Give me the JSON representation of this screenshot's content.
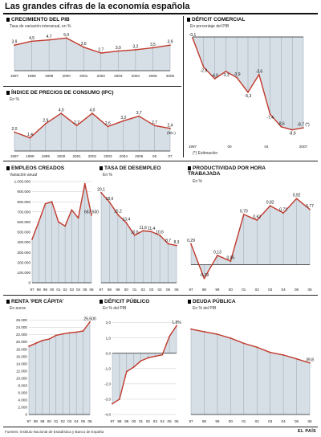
{
  "title": "Las grandes cifras de la economía española",
  "footer": {
    "sources": "Fuentes: Instituto Nacional de Estadística y Banco de España",
    "newspaper": "EL PAÍS"
  },
  "colors": {
    "line": "#c0392b",
    "fill": "#d6dee6",
    "grid": "#b5bec7"
  },
  "chart_data": [
    {
      "id": "pib",
      "type": "area",
      "title": "CRECIMIENTO DEL PIB",
      "subtitle": "Tasa de variación interanual, en %",
      "x": [
        "1997",
        "1998",
        "1999",
        "2000",
        "2001",
        "2002",
        "2003",
        "2004",
        "2005",
        "2006"
      ],
      "x_labels": [
        "1997",
        "1998",
        "1999",
        "2000",
        "2001",
        "2002",
        "2003",
        "2004",
        "2005",
        "2006"
      ],
      "values": [
        3.9,
        4.5,
        4.7,
        5.0,
        3.6,
        2.7,
        3.0,
        3.2,
        3.5,
        3.9
      ],
      "labels": [
        "3,9",
        "4,5",
        "4,7",
        "5,0",
        "3,6",
        "2,7",
        "3,0",
        "3,2",
        "3,5",
        "3,9"
      ],
      "ylim": [
        0,
        5.4
      ]
    },
    {
      "id": "ipc",
      "type": "area",
      "title": "ÍNDICE DE PRECIOS DE CONSUMO (IPC)",
      "subtitle": "En %",
      "x": [
        "1997",
        "1998",
        "1999",
        "2000",
        "2001",
        "2002",
        "2003",
        "2004",
        "2005",
        "2006",
        "Feb 2007"
      ],
      "x_labels": [
        "1997",
        "1998",
        "1999",
        "2000",
        "2001",
        "2002",
        "2003",
        "2004",
        "2005",
        "06",
        "07"
      ],
      "values": [
        2.0,
        1.4,
        2.9,
        4.0,
        2.7,
        4.0,
        2.6,
        3.2,
        3.7,
        2.7,
        2.4
      ],
      "labels": [
        "2,0",
        "1,4",
        "2,9",
        "4,0",
        "2,7",
        "4,0",
        "2,6",
        "3,2",
        "3,7",
        "2,7",
        "2,4"
      ],
      "end_note": "(feb.)",
      "ylim": [
        0,
        4.6
      ]
    },
    {
      "id": "deficit_comercial",
      "type": "area",
      "title": "DÉFICIT COMERCIAL",
      "subtitle": "En porcentaje del PIB",
      "x": [
        "1997",
        "1998",
        "1999",
        "2000",
        "2001",
        "2002",
        "2003",
        "2004",
        "2005",
        "2006",
        "2007"
      ],
      "x_labels": [
        "1997",
        "00",
        "04",
        "2007"
      ],
      "values": [
        -0.1,
        -2.9,
        -4.0,
        -3.3,
        -3.9,
        -5.3,
        -3.6,
        -7.4,
        -8.6,
        -8.9,
        -8.7
      ],
      "labels": [
        "-0,1",
        "-2,9",
        "-4,0",
        "-3,3",
        "-3,9",
        "-5,3",
        "-3,6",
        "-7,4",
        "-8,6",
        "-8,9",
        "-8,7 (*)"
      ],
      "ylim": [
        -10,
        0
      ],
      "note": "(*) Estimación"
    },
    {
      "id": "empleos",
      "type": "area",
      "title": "EMPLEOS CREADOS",
      "subtitle": "Variación anual",
      "x": [
        "1997",
        "1998",
        "1999",
        "2000",
        "2001",
        "2002",
        "2003",
        "2004",
        "2005",
        "2006"
      ],
      "x_labels": [
        "97",
        "98",
        "99",
        "00",
        "01",
        "02",
        "03",
        "04",
        "05",
        "06"
      ],
      "values": [
        430000,
        600000,
        780000,
        800000,
        600000,
        560000,
        720000,
        640000,
        980000,
        667500
      ],
      "labels": [
        "",
        "",
        "",
        "",
        "",
        "",
        "",
        "",
        "",
        "667.500"
      ],
      "yticks": [
        "1.000.000",
        "900.000",
        "800.000",
        "700.000",
        "600.000",
        "500.000",
        "400.000",
        "300.000",
        "200.000",
        "100.000",
        "0"
      ],
      "ylim": [
        0,
        1000000
      ]
    },
    {
      "id": "paro",
      "type": "area",
      "title": "TASA DE DESEMPLEO",
      "subtitle": "En %",
      "x": [
        "1997",
        "1998",
        "1999",
        "2000",
        "2001",
        "2002",
        "2003",
        "2004",
        "2005",
        "2006"
      ],
      "x_labels": [
        "97",
        "98",
        "99",
        "00",
        "01",
        "02",
        "03",
        "04",
        "05",
        "06"
      ],
      "values": [
        20.1,
        18.0,
        15.2,
        13.4,
        10.6,
        11.6,
        11.4,
        10.6,
        8.7,
        8.3
      ],
      "labels": [
        "20,1",
        "18,0",
        "15,2",
        "13,4",
        "10,6",
        "11,6",
        "11,4",
        "10,6",
        "8,7",
        "8,3"
      ],
      "ylim": [
        0,
        21.5
      ]
    },
    {
      "id": "productividad",
      "type": "area",
      "title": "PRODUCTIVIDAD POR HORA TRABAJADA",
      "subtitle": "En %",
      "x": [
        "1997",
        "1998",
        "1999",
        "2000",
        "2001",
        "2002",
        "2003",
        "2004",
        "2005",
        "2006"
      ],
      "x_labels": [
        "97",
        "98",
        "99",
        "00",
        "01",
        "02",
        "03",
        "04",
        "05",
        "06"
      ],
      "values": [
        0.29,
        -0.19,
        0.13,
        0.05,
        0.7,
        0.62,
        0.82,
        0.72,
        0.92,
        0.77
      ],
      "labels": [
        "0,29",
        "-0,19",
        "0,13",
        "0,05",
        "0,70",
        "0,62",
        "0,82",
        "0,72",
        "0,92",
        "0,77"
      ],
      "ylim": [
        -0.25,
        1.0
      ]
    },
    {
      "id": "renta",
      "type": "area",
      "title": "RENTA 'PER CÁPITA'",
      "subtitle": "En euros",
      "x": [
        "1997",
        "1998",
        "1999",
        "2000",
        "2001",
        "2002",
        "2003",
        "2004",
        "2005",
        "2006"
      ],
      "x_labels": [
        "97",
        "98",
        "99",
        "00",
        "01",
        "02",
        "03",
        "04",
        "05",
        "06"
      ],
      "values": [
        18800,
        19600,
        20400,
        20800,
        21800,
        22200,
        22500,
        22700,
        23000,
        25500
      ],
      "labels": [
        "",
        "",
        "",
        "",
        "",
        "",
        "",
        "",
        "",
        "25.500"
      ],
      "yticks": [
        "26.000",
        "24.000",
        "22.000",
        "20.000",
        "18.000",
        "16.000",
        "14.000",
        "12.000",
        "10.000",
        "8.000",
        "6.000",
        "4.000",
        "2.000",
        "0"
      ],
      "ylim": [
        0,
        27000
      ]
    },
    {
      "id": "deficit_publico",
      "type": "area",
      "title": "DÉFICIT PÚBLICO",
      "subtitle": "En % del PIB",
      "x": [
        "1997",
        "1998",
        "1999",
        "2000",
        "2001",
        "2002",
        "2003",
        "2004",
        "2005",
        "2006"
      ],
      "x_labels": [
        "97",
        "98",
        "99",
        "00",
        "01",
        "02",
        "03",
        "04",
        "05",
        "06"
      ],
      "values": [
        -3.3,
        -3.0,
        -1.2,
        -0.9,
        -0.5,
        -0.3,
        -0.2,
        -0.1,
        1.1,
        1.8
      ],
      "labels": [
        "",
        "",
        "",
        "",
        "",
        "",
        "",
        "",
        "",
        "1,8%"
      ],
      "yticks": [
        "2,0",
        "1,0",
        "0,0",
        "-1,0",
        "-2,0",
        "-3,0",
        "-4,0"
      ],
      "ylim": [
        -4.0,
        2.4
      ]
    },
    {
      "id": "deuda",
      "type": "area",
      "title": "DEUDA PÚBLICA",
      "subtitle": "En % del PIB",
      "x": [
        "1997",
        "1998",
        "1999",
        "2000",
        "2001",
        "2002",
        "2003",
        "2004",
        "2005",
        "2006"
      ],
      "x_labels": [
        "97",
        "98",
        "99",
        "00",
        "01",
        "02",
        "03",
        "04",
        "05",
        "06"
      ],
      "values": [
        66.0,
        64.0,
        62.0,
        59.0,
        55.0,
        52.0,
        48.0,
        46.0,
        43.0,
        39.8
      ],
      "labels": [
        "",
        "",
        "",
        "",
        "",
        "",
        "",
        "",
        "",
        "39,8"
      ],
      "ylim": [
        0,
        72
      ]
    }
  ]
}
